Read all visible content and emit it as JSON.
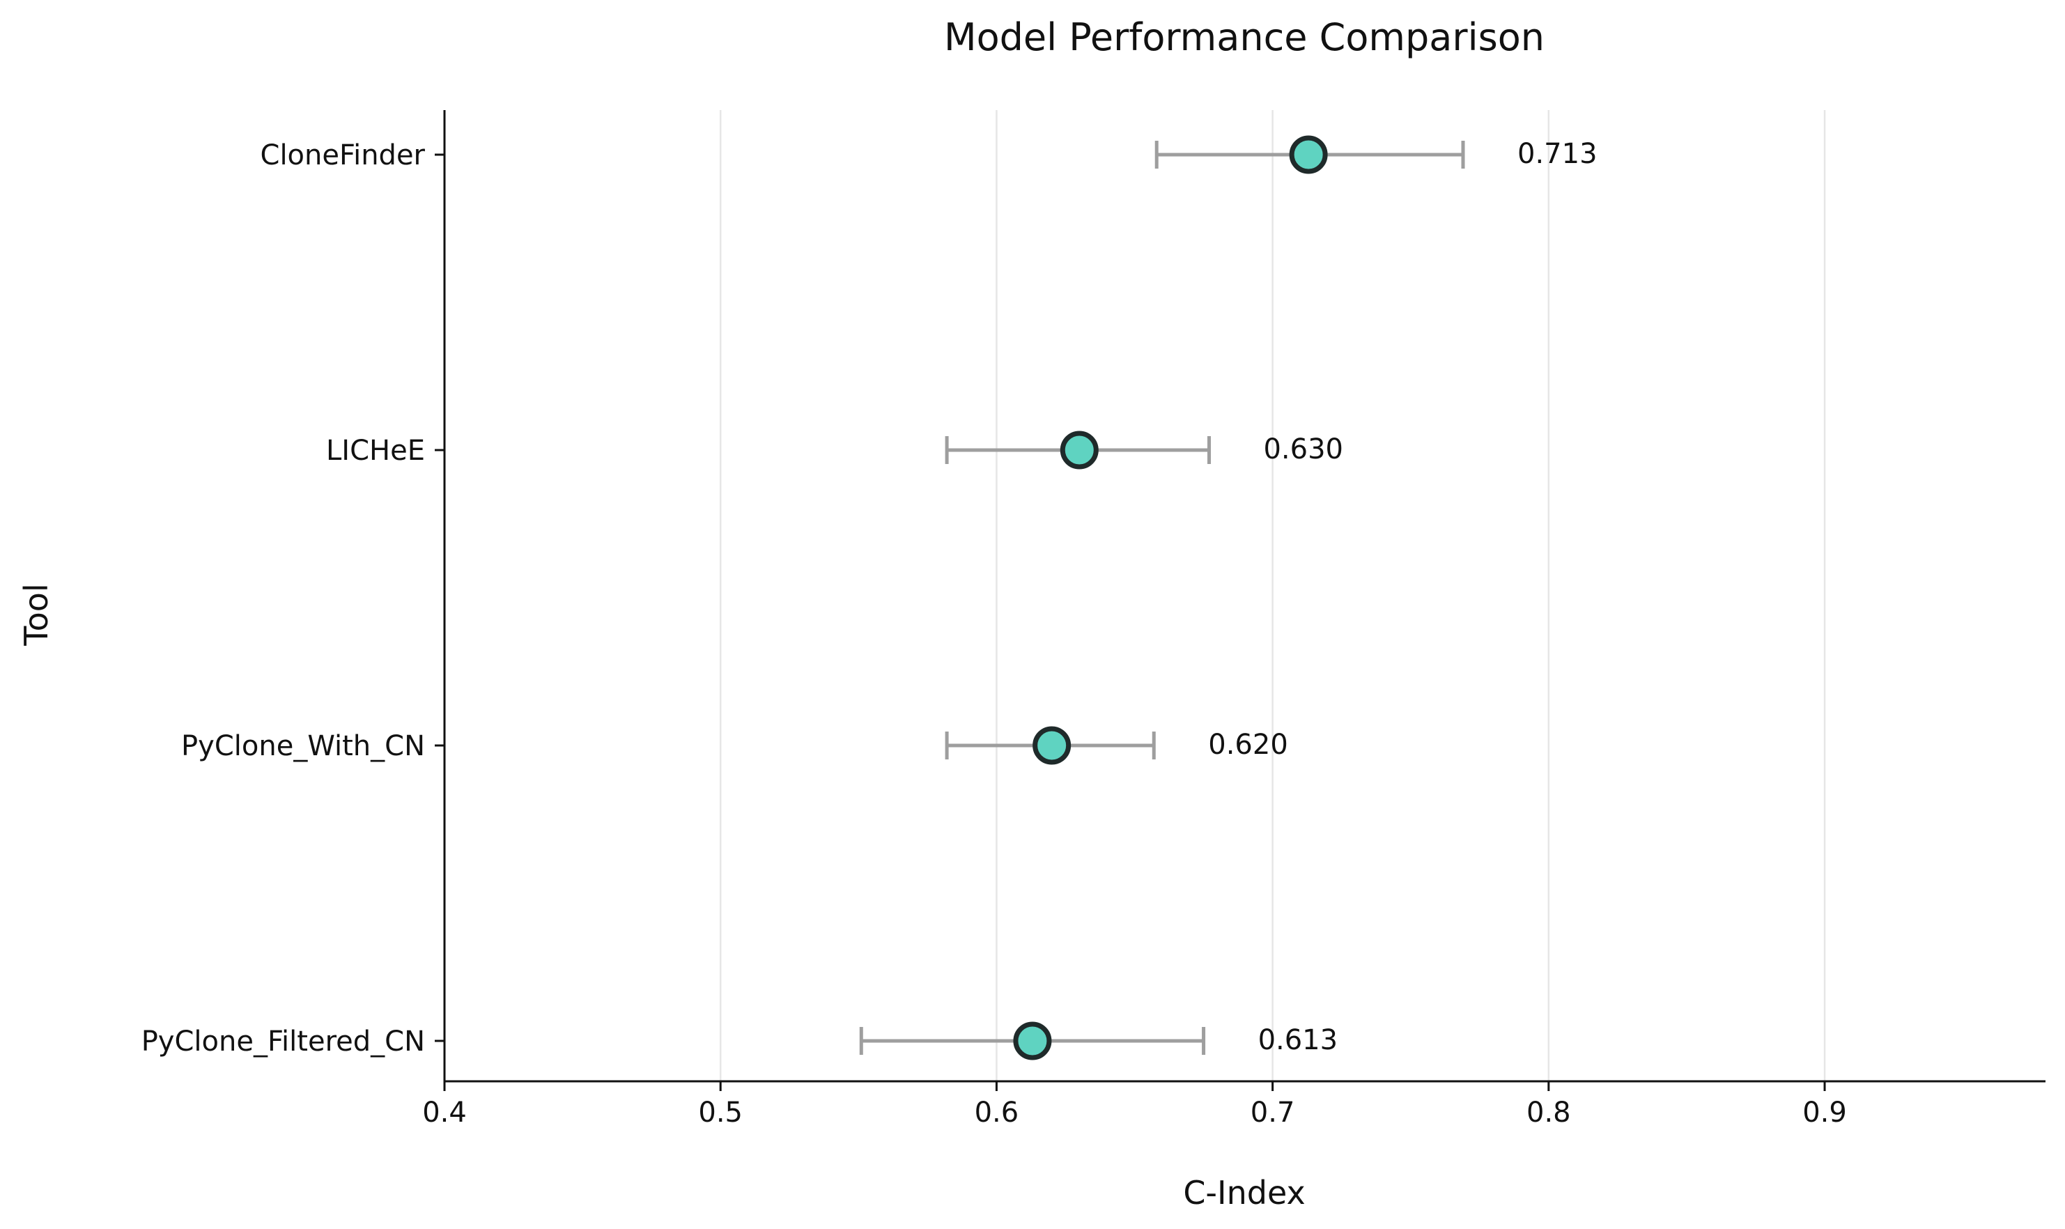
{
  "chart_data": {
    "type": "scatter",
    "title": "Model Performance Comparison",
    "xlabel": "C-Index",
    "ylabel": "Tool",
    "xlim": [
      0.4,
      0.98
    ],
    "xticks": [
      0.4,
      0.5,
      0.6,
      0.7,
      0.8,
      0.9
    ],
    "xtick_labels": [
      "0.4",
      "0.5",
      "0.6",
      "0.7",
      "0.8",
      "0.9"
    ],
    "grid": "vertical",
    "categories": [
      "CloneFinder",
      "LICHeE",
      "PyClone_With_CN",
      "PyClone_Filtered_CN"
    ],
    "values": [
      0.713,
      0.63,
      0.62,
      0.613
    ],
    "ci_lower": [
      0.658,
      0.582,
      0.582,
      0.551
    ],
    "ci_upper": [
      0.769,
      0.677,
      0.657,
      0.675
    ],
    "value_labels": [
      "0.713",
      "0.630",
      "0.620",
      "0.613"
    ],
    "colors": {
      "marker_fill": "#5fd3c1",
      "marker_edge": "#1f2a2a",
      "errorbar": "#9e9e9e",
      "grid": "#e6e6e6",
      "axis": "#111111"
    }
  }
}
